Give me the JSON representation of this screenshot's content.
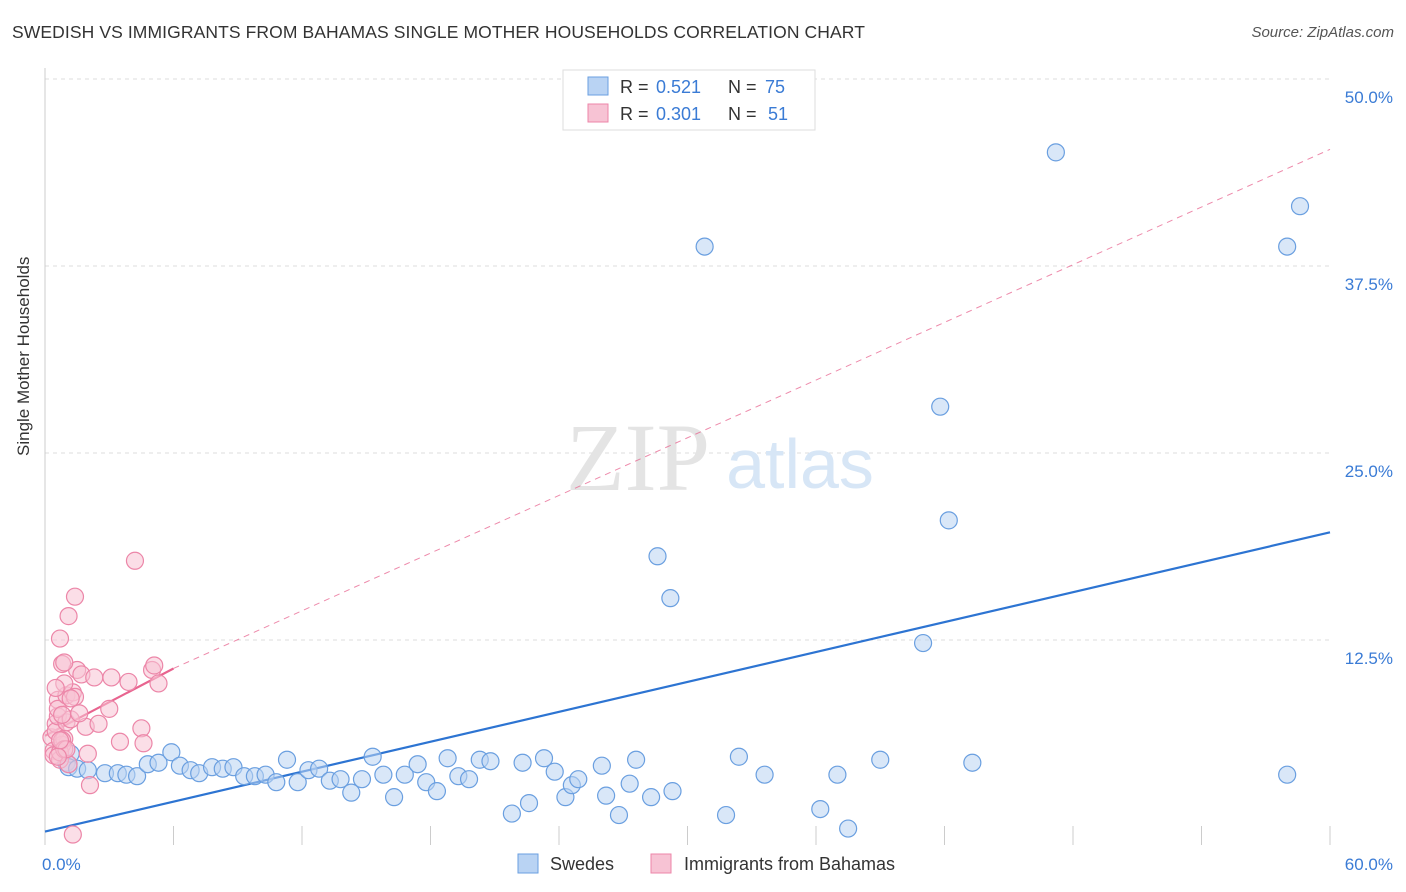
{
  "header": {
    "title": "SWEDISH VS IMMIGRANTS FROM BAHAMAS SINGLE MOTHER HOUSEHOLDS CORRELATION CHART",
    "source": "Source: ZipAtlas.com"
  },
  "watermark": {
    "zip": "ZIP",
    "atlas": "atlas"
  },
  "colors": {
    "swedes": "#6a9fe0",
    "swedes_fill": "#b9d3f3",
    "swedes_line": "#2d74d2",
    "bahamas": "#ec86a8",
    "bahamas_fill": "#f7c3d4",
    "bahamas_line": "#e8648f",
    "axis_text": "#3a7bd5",
    "grid": "#dddddd"
  },
  "legend_top": [
    {
      "series": "swedes",
      "r_label": "R =",
      "r_value": "0.521",
      "n_label": "N =",
      "n_value": "75"
    },
    {
      "series": "bahamas",
      "r_label": "R =",
      "r_value": "0.301",
      "n_label": "N =",
      "n_value": "51"
    }
  ],
  "chart_data": {
    "type": "scatter",
    "title": "SWEDISH VS IMMIGRANTS FROM BAHAMAS SINGLE MOTHER HOUSEHOLDS CORRELATION CHART",
    "xlabel": "",
    "ylabel": "Single Mother Households",
    "xlim": [
      0,
      60
    ],
    "ylim": [
      0,
      50
    ],
    "x_tick_labels": [
      "0.0%",
      "60.0%"
    ],
    "y_ticks": [
      12.5,
      25.0,
      37.5,
      50.0
    ],
    "y_tick_labels": [
      "12.5%",
      "25.0%",
      "37.5%",
      "50.0%"
    ],
    "grid": true,
    "legend_position": "bottom-center",
    "series": [
      {
        "name": "Swedes",
        "key": "swedes",
        "r": 0.521,
        "n": 75,
        "trend": {
          "x": [
            0,
            60
          ],
          "y": [
            0.9,
            20.9
          ],
          "style": "solid"
        },
        "points": [
          [
            1.0,
            5.5
          ],
          [
            1.2,
            6.1
          ],
          [
            1.1,
            5.2
          ],
          [
            1.5,
            5.1
          ],
          [
            2.0,
            5.0
          ],
          [
            2.8,
            4.8
          ],
          [
            3.4,
            4.8
          ],
          [
            3.8,
            4.7
          ],
          [
            4.3,
            4.6
          ],
          [
            4.8,
            5.4
          ],
          [
            5.3,
            5.5
          ],
          [
            5.9,
            6.2
          ],
          [
            6.3,
            5.3
          ],
          [
            6.8,
            5.0
          ],
          [
            7.2,
            4.8
          ],
          [
            7.8,
            5.2
          ],
          [
            8.3,
            5.1
          ],
          [
            8.8,
            5.2
          ],
          [
            9.3,
            4.6
          ],
          [
            9.8,
            4.6
          ],
          [
            10.3,
            4.7
          ],
          [
            10.8,
            4.2
          ],
          [
            11.3,
            5.7
          ],
          [
            11.8,
            4.2
          ],
          [
            12.3,
            5.0
          ],
          [
            12.8,
            5.1
          ],
          [
            13.3,
            4.3
          ],
          [
            13.8,
            4.4
          ],
          [
            14.3,
            3.5
          ],
          [
            14.8,
            4.4
          ],
          [
            15.3,
            5.9
          ],
          [
            15.8,
            4.7
          ],
          [
            16.3,
            3.2
          ],
          [
            16.8,
            4.7
          ],
          [
            17.4,
            5.4
          ],
          [
            17.8,
            4.2
          ],
          [
            18.3,
            3.6
          ],
          [
            18.8,
            5.8
          ],
          [
            19.3,
            4.6
          ],
          [
            19.8,
            4.4
          ],
          [
            20.3,
            5.7
          ],
          [
            20.8,
            5.6
          ],
          [
            21.8,
            2.1
          ],
          [
            22.3,
            5.5
          ],
          [
            22.6,
            2.8
          ],
          [
            23.3,
            5.8
          ],
          [
            23.8,
            4.9
          ],
          [
            24.3,
            3.2
          ],
          [
            24.6,
            4.0
          ],
          [
            24.9,
            4.4
          ],
          [
            26.0,
            5.3
          ],
          [
            26.2,
            3.3
          ],
          [
            26.8,
            2.0
          ],
          [
            27.3,
            4.1
          ],
          [
            27.6,
            5.7
          ],
          [
            28.3,
            3.2
          ],
          [
            29.3,
            3.6
          ],
          [
            30.8,
            40.0
          ],
          [
            31.8,
            2.0
          ],
          [
            32.4,
            5.9
          ],
          [
            33.6,
            4.7
          ],
          [
            36.2,
            2.4
          ],
          [
            37.0,
            4.7
          ],
          [
            37.5,
            1.1
          ],
          [
            39.0,
            5.7
          ],
          [
            41.0,
            13.5
          ],
          [
            41.8,
            29.3
          ],
          [
            42.2,
            21.7
          ],
          [
            43.3,
            5.5
          ],
          [
            47.2,
            46.3
          ],
          [
            28.6,
            19.3
          ],
          [
            29.2,
            16.5
          ],
          [
            58.0,
            40.0
          ],
          [
            58.6,
            42.7
          ],
          [
            58.0,
            4.7
          ]
        ]
      },
      {
        "name": "Immigrants from Bahamas",
        "key": "bahamas",
        "r": 0.301,
        "n": 51,
        "trend": {
          "x": [
            0,
            6
          ],
          "y": [
            7.3,
            11.8
          ],
          "style": "solid",
          "extended": {
            "x": [
              6,
              60
            ],
            "y": [
              11.8,
              46.5
            ],
            "style": "dashed"
          }
        },
        "points": [
          [
            0.3,
            7.2
          ],
          [
            0.4,
            6.3
          ],
          [
            0.5,
            8.1
          ],
          [
            0.6,
            9.7
          ],
          [
            0.4,
            6.0
          ],
          [
            0.5,
            7.6
          ],
          [
            0.6,
            8.6
          ],
          [
            0.7,
            5.7
          ],
          [
            0.8,
            6.7
          ],
          [
            0.9,
            7.1
          ],
          [
            1.0,
            8.2
          ],
          [
            0.6,
            9.1
          ],
          [
            0.7,
            6.2
          ],
          [
            0.8,
            7.0
          ],
          [
            0.9,
            6.4
          ],
          [
            1.0,
            10.0
          ],
          [
            1.1,
            5.4
          ],
          [
            1.2,
            8.4
          ],
          [
            1.3,
            10.2
          ],
          [
            1.4,
            9.9
          ],
          [
            1.5,
            11.7
          ],
          [
            0.8,
            12.1
          ],
          [
            0.9,
            10.8
          ],
          [
            0.7,
            13.8
          ],
          [
            1.1,
            15.3
          ],
          [
            1.4,
            16.6
          ],
          [
            1.7,
            11.4
          ],
          [
            1.9,
            7.9
          ],
          [
            2.0,
            6.1
          ],
          [
            2.1,
            4.0
          ],
          [
            2.3,
            11.2
          ],
          [
            2.5,
            8.1
          ],
          [
            3.0,
            9.1
          ],
          [
            3.1,
            11.2
          ],
          [
            3.5,
            6.9
          ],
          [
            3.9,
            10.9
          ],
          [
            4.2,
            19.0
          ],
          [
            4.5,
            7.8
          ],
          [
            4.6,
            6.8
          ],
          [
            5.0,
            11.7
          ],
          [
            5.1,
            12.0
          ],
          [
            5.3,
            10.8
          ],
          [
            0.5,
            10.5
          ],
          [
            1.3,
            0.7
          ],
          [
            0.8,
            8.7
          ],
          [
            1.0,
            6.4
          ],
          [
            1.6,
            8.8
          ],
          [
            0.6,
            5.9
          ],
          [
            1.2,
            9.8
          ],
          [
            0.9,
            12.2
          ],
          [
            0.7,
            7.0
          ]
        ]
      }
    ]
  }
}
